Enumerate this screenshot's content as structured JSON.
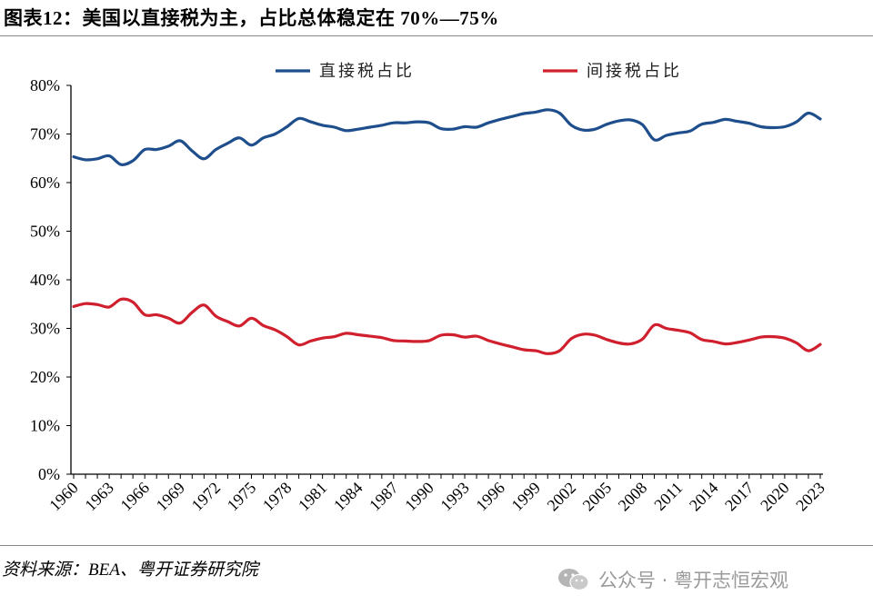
{
  "title": "图表12：美国以直接税为主，占比总体稳定在 70%—75%",
  "source": "资料来源：BEA、粤开证券研究院",
  "watermark": "公众号 · 粤开志恒宏观",
  "colors": {
    "direct": "#1F4E8C",
    "indirect": "#D0202E",
    "axis": "#000000"
  },
  "chart_data": {
    "type": "line",
    "title": "",
    "xlabel": "",
    "ylabel": "",
    "legend_position": "top",
    "grid": false,
    "x": [
      1960,
      1961,
      1962,
      1963,
      1964,
      1965,
      1966,
      1967,
      1968,
      1969,
      1970,
      1971,
      1972,
      1973,
      1974,
      1975,
      1976,
      1977,
      1978,
      1979,
      1980,
      1981,
      1982,
      1983,
      1984,
      1985,
      1986,
      1987,
      1988,
      1989,
      1990,
      1991,
      1992,
      1993,
      1994,
      1995,
      1996,
      1997,
      1998,
      1999,
      2000,
      2001,
      2002,
      2003,
      2004,
      2005,
      2006,
      2007,
      2008,
      2009,
      2010,
      2011,
      2012,
      2013,
      2014,
      2015,
      2016,
      2017,
      2018,
      2019,
      2020,
      2021,
      2022,
      2023
    ],
    "xticks": [
      "1960",
      "1963",
      "1966",
      "1969",
      "1972",
      "1975",
      "1978",
      "1981",
      "1984",
      "1987",
      "1990",
      "1993",
      "1996",
      "1999",
      "2002",
      "2005",
      "2008",
      "2011",
      "2014",
      "2017",
      "2020",
      "2023"
    ],
    "yticks": [
      "0%",
      "10%",
      "20%",
      "30%",
      "40%",
      "50%",
      "60%",
      "70%",
      "80%"
    ],
    "ylim": [
      0,
      80
    ],
    "series": [
      {
        "name": "直接税占比",
        "color": "#1F4E8C",
        "values": [
          65.3,
          64.7,
          64.9,
          65.5,
          63.7,
          64.5,
          66.8,
          66.8,
          67.5,
          68.6,
          66.5,
          64.9,
          66.8,
          68.1,
          69.2,
          67.7,
          69.2,
          70.0,
          71.5,
          73.2,
          72.5,
          71.8,
          71.4,
          70.7,
          71.0,
          71.4,
          71.8,
          72.3,
          72.3,
          72.5,
          72.3,
          71.1,
          71.0,
          71.5,
          71.4,
          72.3,
          73.0,
          73.6,
          74.2,
          74.5,
          75.0,
          74.3,
          71.8,
          70.8,
          71.0,
          72.0,
          72.7,
          72.9,
          71.9,
          68.8,
          69.7,
          70.2,
          70.6,
          72.0,
          72.4,
          73.0,
          72.6,
          72.2,
          71.5,
          71.3,
          71.5,
          72.5,
          74.3,
          73.1
        ]
      },
      {
        "name": "间接税占比",
        "color": "#D0202E",
        "values": [
          34.5,
          35.1,
          34.9,
          34.4,
          36.0,
          35.4,
          32.8,
          32.8,
          32.1,
          31.1,
          33.3,
          34.8,
          32.5,
          31.4,
          30.5,
          32.1,
          30.6,
          29.7,
          28.3,
          26.6,
          27.4,
          28.0,
          28.3,
          29.0,
          28.7,
          28.4,
          28.1,
          27.5,
          27.4,
          27.3,
          27.5,
          28.6,
          28.7,
          28.2,
          28.4,
          27.5,
          26.8,
          26.2,
          25.6,
          25.4,
          24.8,
          25.4,
          27.9,
          28.8,
          28.6,
          27.7,
          27.0,
          26.8,
          27.8,
          30.7,
          30.0,
          29.6,
          29.1,
          27.7,
          27.3,
          26.8,
          27.1,
          27.6,
          28.2,
          28.3,
          28.0,
          27.0,
          25.4,
          26.7
        ]
      }
    ]
  }
}
